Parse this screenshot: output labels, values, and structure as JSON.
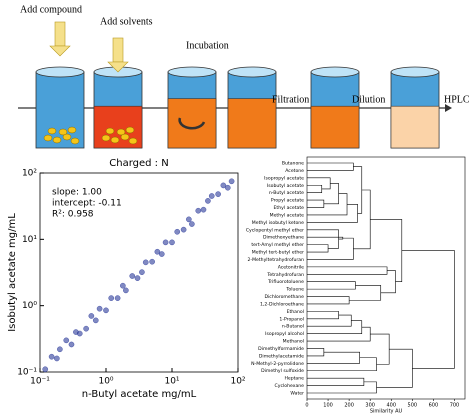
{
  "diagram": {
    "steps": [
      "Add compound",
      "Add solvents",
      "Incubation",
      "Filtration",
      "Dilution",
      "HPLC"
    ]
  },
  "chart_data": [
    {
      "type": "scatter",
      "title": "Charged : N",
      "xlabel": "n-Butyl acetate mg/mL",
      "ylabel": "Isobutyl acetate mg/mL",
      "annotations": [
        "slope: 1.00",
        "intercept: -0.11",
        "R²: 0.958"
      ],
      "log_scale": true,
      "color": "#2b3a9a",
      "xlim": [
        0.1,
        100
      ],
      "ylim": [
        0.1,
        100
      ],
      "xticks": [
        {
          "value": 0.1,
          "label": "10⁻¹"
        },
        {
          "value": 1,
          "label": "10⁰"
        },
        {
          "value": 10,
          "label": "10¹"
        },
        {
          "value": 100,
          "label": "10²"
        }
      ],
      "yticks": [
        {
          "value": 0.1,
          "label": "10⁻¹"
        },
        {
          "value": 1,
          "label": "10⁰"
        },
        {
          "value": 10,
          "label": "10¹"
        },
        {
          "value": 100,
          "label": "10²"
        }
      ],
      "x": [
        0.12,
        0.15,
        0.18,
        0.2,
        0.25,
        0.3,
        0.35,
        0.4,
        0.5,
        0.6,
        0.7,
        0.8,
        1,
        1.2,
        1.5,
        1.8,
        2,
        2.5,
        3,
        3.5,
        4,
        5,
        6,
        7,
        8,
        10,
        12,
        15,
        18,
        20,
        25,
        30,
        35,
        40,
        50,
        60,
        70,
        80
      ],
      "values": [
        0.11,
        0.17,
        0.16,
        0.22,
        0.3,
        0.26,
        0.4,
        0.38,
        0.45,
        0.7,
        0.6,
        0.9,
        0.85,
        1.3,
        1.3,
        2,
        1.7,
        2.8,
        2.6,
        3.2,
        4.5,
        4.6,
        6.5,
        6,
        9,
        9,
        13,
        14,
        20,
        17,
        27,
        28,
        38,
        45,
        48,
        65,
        60,
        75
      ]
    },
    {
      "type": "dendrogram",
      "xlabel": "Similarity AU",
      "xlim": [
        0,
        750
      ],
      "xticks": [
        0,
        100,
        200,
        300,
        400,
        500,
        600,
        700
      ],
      "leaves": [
        "Butanone",
        "Acetone",
        "Isopropyl acetate",
        "Isobutyl acetate",
        "n-Butyl acetate",
        "Propyl acetate",
        "Ethyl acetate",
        "Methyl acetate",
        "Methyl isobutyl ketone",
        "Cyclopentyl methyl ether",
        "Dimethoxyethane",
        "tert-Amyl methyl ether",
        "Methyl tert-butyl ether",
        "2-Methyltetrahydrofuran",
        "Acetonitrile",
        "Tetrahydrofuran",
        "Trifluorotoluene",
        "Toluene",
        "Dichloromethane",
        "1,2-Dichloroethane",
        "Ethanol",
        "1-Propanol",
        "n-Butanol",
        "Isopropyl alcohol",
        "Methanol",
        "Dimethylformamide",
        "Dimethylacetamide",
        "N-Methyl-2-pyrrolidone",
        "Dimethyl sulfoxide",
        "Heptane",
        "Cyclohexane",
        "Water"
      ],
      "merges": [
        [
          3,
          4,
          70
        ],
        [
          2,
          32,
          110
        ],
        [
          5,
          6,
          80
        ],
        [
          33,
          34,
          150
        ],
        [
          35,
          7,
          190
        ],
        [
          0,
          1,
          220
        ],
        [
          36,
          8,
          240
        ],
        [
          37,
          38,
          260
        ],
        [
          11,
          12,
          100
        ],
        [
          9,
          40,
          150
        ],
        [
          10,
          41,
          170
        ],
        [
          42,
          13,
          220
        ],
        [
          39,
          43,
          300
        ],
        [
          14,
          15,
          380
        ],
        [
          16,
          17,
          230
        ],
        [
          18,
          19,
          200
        ],
        [
          46,
          47,
          350
        ],
        [
          45,
          48,
          420
        ],
        [
          44,
          49,
          450
        ],
        [
          20,
          21,
          150
        ],
        [
          51,
          22,
          210
        ],
        [
          52,
          23,
          260
        ],
        [
          53,
          24,
          300
        ],
        [
          25,
          26,
          80
        ],
        [
          55,
          27,
          250
        ],
        [
          56,
          28,
          330
        ],
        [
          54,
          57,
          390
        ],
        [
          29,
          30,
          270
        ],
        [
          59,
          31,
          330
        ],
        [
          58,
          60,
          500
        ],
        [
          50,
          61,
          700
        ]
      ]
    }
  ]
}
